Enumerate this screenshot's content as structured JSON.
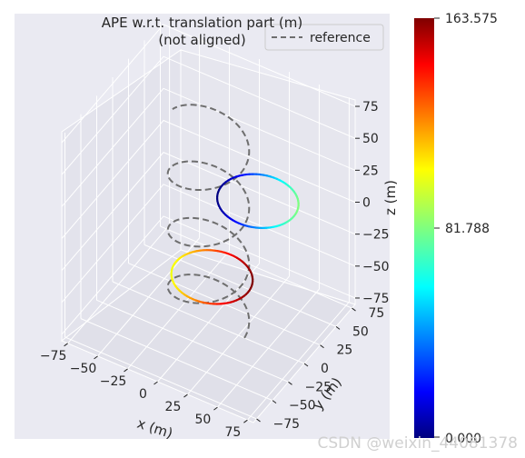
{
  "chart_data": {
    "type": "line",
    "projection": "3d",
    "title_line1": "APE w.r.t. translation part (m)",
    "title_line2": "(not aligned)",
    "xlabel": "x (m)",
    "ylabel": "y (m)",
    "zlabel": "z (m)",
    "xticks": [
      -75,
      -50,
      -25,
      0,
      25,
      50,
      75
    ],
    "yticks": [
      -75,
      -50,
      -25,
      0,
      25,
      50,
      75
    ],
    "zticks": [
      -75,
      -50,
      -25,
      0,
      25,
      50,
      75
    ],
    "xlim": [
      -80,
      80
    ],
    "ylim": [
      -80,
      80
    ],
    "zlim": [
      -80,
      80
    ],
    "grid": true,
    "legend": {
      "label": "reference",
      "style": "dashed",
      "color": "#6e6e6e",
      "placement": "top-right"
    },
    "colorbar": {
      "colormap": "jet",
      "min_label": "0.000",
      "mid_label": "81.788",
      "max_label": "163.575",
      "min": 0,
      "max": 163.575
    },
    "series": [
      {
        "name": "reference",
        "kind": "helix",
        "style": "dashed",
        "color": "#6e6e6e",
        "radius_x": 30,
        "radius_y": 30,
        "z_start": -80,
        "z_end": 75,
        "turns": 3.5
      },
      {
        "kind": "ring",
        "colored_by_error": true,
        "center": [
          -5,
          15,
          -55
        ],
        "radius": 30,
        "error_range": [
          100,
          163.575
        ]
      },
      {
        "kind": "ring",
        "colored_by_error": true,
        "center": [
          20,
          40,
          0
        ],
        "radius": 30,
        "error_range": [
          0,
          81.788
        ]
      }
    ]
  },
  "watermark": "CSDN @weixin_44081378"
}
